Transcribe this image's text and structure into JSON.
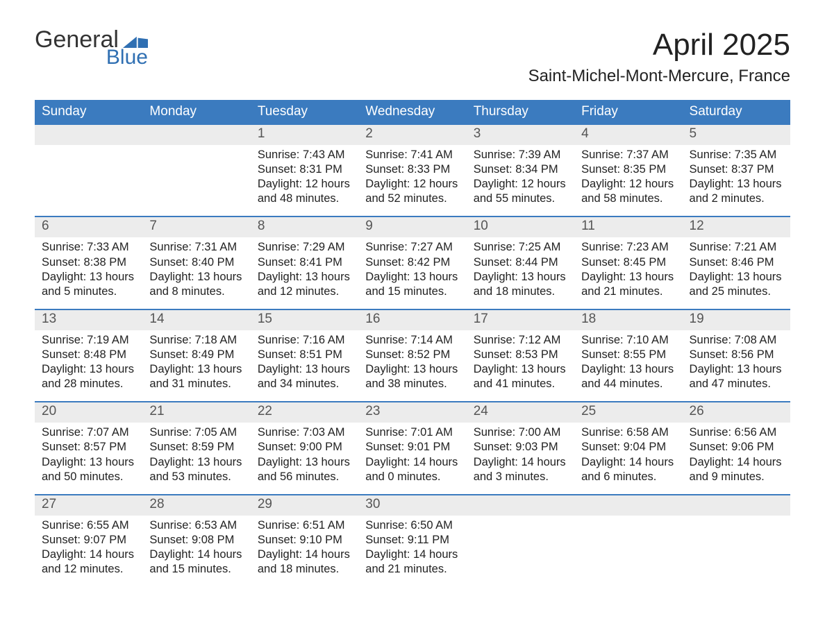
{
  "logo": {
    "text1": "General",
    "text2": "Blue"
  },
  "title": "April 2025",
  "subtitle": "Saint-Michel-Mont-Mercure, France",
  "colors": {
    "header_blue": "#3b7bbf",
    "row_gray": "#ececec",
    "logo_blue": "#2f6fb2"
  },
  "day_headers": [
    "Sunday",
    "Monday",
    "Tuesday",
    "Wednesday",
    "Thursday",
    "Friday",
    "Saturday"
  ],
  "weeks": [
    [
      {
        "n": "",
        "sunrise": "",
        "sunset": "",
        "d1": "",
        "d2": ""
      },
      {
        "n": "",
        "sunrise": "",
        "sunset": "",
        "d1": "",
        "d2": ""
      },
      {
        "n": "1",
        "sunrise": "Sunrise: 7:43 AM",
        "sunset": "Sunset: 8:31 PM",
        "d1": "Daylight: 12 hours",
        "d2": "and 48 minutes."
      },
      {
        "n": "2",
        "sunrise": "Sunrise: 7:41 AM",
        "sunset": "Sunset: 8:33 PM",
        "d1": "Daylight: 12 hours",
        "d2": "and 52 minutes."
      },
      {
        "n": "3",
        "sunrise": "Sunrise: 7:39 AM",
        "sunset": "Sunset: 8:34 PM",
        "d1": "Daylight: 12 hours",
        "d2": "and 55 minutes."
      },
      {
        "n": "4",
        "sunrise": "Sunrise: 7:37 AM",
        "sunset": "Sunset: 8:35 PM",
        "d1": "Daylight: 12 hours",
        "d2": "and 58 minutes."
      },
      {
        "n": "5",
        "sunrise": "Sunrise: 7:35 AM",
        "sunset": "Sunset: 8:37 PM",
        "d1": "Daylight: 13 hours",
        "d2": "and 2 minutes."
      }
    ],
    [
      {
        "n": "6",
        "sunrise": "Sunrise: 7:33 AM",
        "sunset": "Sunset: 8:38 PM",
        "d1": "Daylight: 13 hours",
        "d2": "and 5 minutes."
      },
      {
        "n": "7",
        "sunrise": "Sunrise: 7:31 AM",
        "sunset": "Sunset: 8:40 PM",
        "d1": "Daylight: 13 hours",
        "d2": "and 8 minutes."
      },
      {
        "n": "8",
        "sunrise": "Sunrise: 7:29 AM",
        "sunset": "Sunset: 8:41 PM",
        "d1": "Daylight: 13 hours",
        "d2": "and 12 minutes."
      },
      {
        "n": "9",
        "sunrise": "Sunrise: 7:27 AM",
        "sunset": "Sunset: 8:42 PM",
        "d1": "Daylight: 13 hours",
        "d2": "and 15 minutes."
      },
      {
        "n": "10",
        "sunrise": "Sunrise: 7:25 AM",
        "sunset": "Sunset: 8:44 PM",
        "d1": "Daylight: 13 hours",
        "d2": "and 18 minutes."
      },
      {
        "n": "11",
        "sunrise": "Sunrise: 7:23 AM",
        "sunset": "Sunset: 8:45 PM",
        "d1": "Daylight: 13 hours",
        "d2": "and 21 minutes."
      },
      {
        "n": "12",
        "sunrise": "Sunrise: 7:21 AM",
        "sunset": "Sunset: 8:46 PM",
        "d1": "Daylight: 13 hours",
        "d2": "and 25 minutes."
      }
    ],
    [
      {
        "n": "13",
        "sunrise": "Sunrise: 7:19 AM",
        "sunset": "Sunset: 8:48 PM",
        "d1": "Daylight: 13 hours",
        "d2": "and 28 minutes."
      },
      {
        "n": "14",
        "sunrise": "Sunrise: 7:18 AM",
        "sunset": "Sunset: 8:49 PM",
        "d1": "Daylight: 13 hours",
        "d2": "and 31 minutes."
      },
      {
        "n": "15",
        "sunrise": "Sunrise: 7:16 AM",
        "sunset": "Sunset: 8:51 PM",
        "d1": "Daylight: 13 hours",
        "d2": "and 34 minutes."
      },
      {
        "n": "16",
        "sunrise": "Sunrise: 7:14 AM",
        "sunset": "Sunset: 8:52 PM",
        "d1": "Daylight: 13 hours",
        "d2": "and 38 minutes."
      },
      {
        "n": "17",
        "sunrise": "Sunrise: 7:12 AM",
        "sunset": "Sunset: 8:53 PM",
        "d1": "Daylight: 13 hours",
        "d2": "and 41 minutes."
      },
      {
        "n": "18",
        "sunrise": "Sunrise: 7:10 AM",
        "sunset": "Sunset: 8:55 PM",
        "d1": "Daylight: 13 hours",
        "d2": "and 44 minutes."
      },
      {
        "n": "19",
        "sunrise": "Sunrise: 7:08 AM",
        "sunset": "Sunset: 8:56 PM",
        "d1": "Daylight: 13 hours",
        "d2": "and 47 minutes."
      }
    ],
    [
      {
        "n": "20",
        "sunrise": "Sunrise: 7:07 AM",
        "sunset": "Sunset: 8:57 PM",
        "d1": "Daylight: 13 hours",
        "d2": "and 50 minutes."
      },
      {
        "n": "21",
        "sunrise": "Sunrise: 7:05 AM",
        "sunset": "Sunset: 8:59 PM",
        "d1": "Daylight: 13 hours",
        "d2": "and 53 minutes."
      },
      {
        "n": "22",
        "sunrise": "Sunrise: 7:03 AM",
        "sunset": "Sunset: 9:00 PM",
        "d1": "Daylight: 13 hours",
        "d2": "and 56 minutes."
      },
      {
        "n": "23",
        "sunrise": "Sunrise: 7:01 AM",
        "sunset": "Sunset: 9:01 PM",
        "d1": "Daylight: 14 hours",
        "d2": "and 0 minutes."
      },
      {
        "n": "24",
        "sunrise": "Sunrise: 7:00 AM",
        "sunset": "Sunset: 9:03 PM",
        "d1": "Daylight: 14 hours",
        "d2": "and 3 minutes."
      },
      {
        "n": "25",
        "sunrise": "Sunrise: 6:58 AM",
        "sunset": "Sunset: 9:04 PM",
        "d1": "Daylight: 14 hours",
        "d2": "and 6 minutes."
      },
      {
        "n": "26",
        "sunrise": "Sunrise: 6:56 AM",
        "sunset": "Sunset: 9:06 PM",
        "d1": "Daylight: 14 hours",
        "d2": "and 9 minutes."
      }
    ],
    [
      {
        "n": "27",
        "sunrise": "Sunrise: 6:55 AM",
        "sunset": "Sunset: 9:07 PM",
        "d1": "Daylight: 14 hours",
        "d2": "and 12 minutes."
      },
      {
        "n": "28",
        "sunrise": "Sunrise: 6:53 AM",
        "sunset": "Sunset: 9:08 PM",
        "d1": "Daylight: 14 hours",
        "d2": "and 15 minutes."
      },
      {
        "n": "29",
        "sunrise": "Sunrise: 6:51 AM",
        "sunset": "Sunset: 9:10 PM",
        "d1": "Daylight: 14 hours",
        "d2": "and 18 minutes."
      },
      {
        "n": "30",
        "sunrise": "Sunrise: 6:50 AM",
        "sunset": "Sunset: 9:11 PM",
        "d1": "Daylight: 14 hours",
        "d2": "and 21 minutes."
      },
      {
        "n": "",
        "sunrise": "",
        "sunset": "",
        "d1": "",
        "d2": ""
      },
      {
        "n": "",
        "sunrise": "",
        "sunset": "",
        "d1": "",
        "d2": ""
      },
      {
        "n": "",
        "sunrise": "",
        "sunset": "",
        "d1": "",
        "d2": ""
      }
    ]
  ]
}
